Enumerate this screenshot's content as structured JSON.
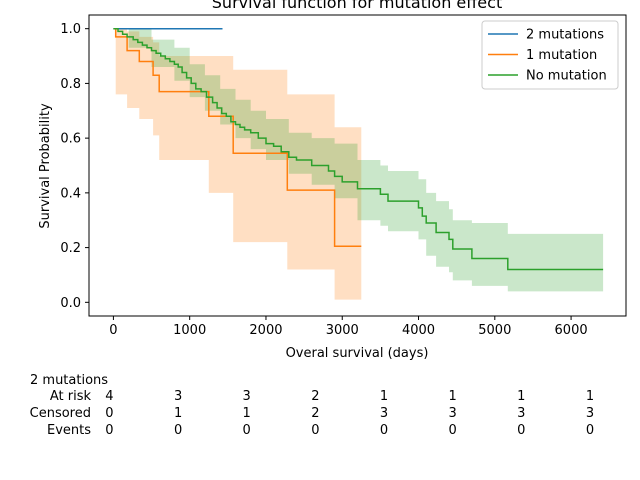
{
  "chart_data": {
    "type": "line",
    "title": "Survival function for mutation effect",
    "xlabel": "Overal survival (days)",
    "ylabel": "Survival Probability",
    "xlim": [
      -320,
      6720
    ],
    "ylim": [
      -0.05,
      1.05
    ],
    "xticks": [
      0,
      1000,
      2000,
      3000,
      4000,
      5000,
      6000
    ],
    "yticks": [
      "0.0",
      "0.2",
      "0.4",
      "0.6",
      "0.8",
      "1.0"
    ],
    "legend_position": "top-right",
    "series": [
      {
        "name": "2 mutations",
        "color": "#1f77b4",
        "steps": [
          [
            0,
            1.0
          ],
          [
            1430,
            1.0
          ]
        ],
        "ci": []
      },
      {
        "name": "1 mutation",
        "color": "#ff7f0e",
        "steps": [
          [
            0,
            1.0
          ],
          [
            30,
            0.97
          ],
          [
            180,
            0.92
          ],
          [
            340,
            0.88
          ],
          [
            520,
            0.83
          ],
          [
            600,
            0.77
          ],
          [
            1250,
            0.68
          ],
          [
            1570,
            0.545
          ],
          [
            2280,
            0.41
          ],
          [
            2900,
            0.205
          ],
          [
            3250,
            0.205
          ]
        ],
        "ci": [
          [
            0,
            1.0,
            1.0
          ],
          [
            30,
            0.76,
            1.0
          ],
          [
            180,
            0.71,
            0.99
          ],
          [
            340,
            0.67,
            0.97
          ],
          [
            520,
            0.61,
            0.95
          ],
          [
            600,
            0.52,
            0.9
          ],
          [
            1250,
            0.4,
            0.9
          ],
          [
            1570,
            0.22,
            0.85
          ],
          [
            2280,
            0.12,
            0.76
          ],
          [
            2900,
            0.01,
            0.64
          ],
          [
            3250,
            0.01,
            0.64
          ]
        ]
      },
      {
        "name": "No mutation",
        "color": "#2ca02c",
        "steps": [
          [
            0,
            1.0
          ],
          [
            60,
            0.99
          ],
          [
            120,
            0.98
          ],
          [
            180,
            0.97
          ],
          [
            260,
            0.96
          ],
          [
            320,
            0.95
          ],
          [
            380,
            0.94
          ],
          [
            440,
            0.93
          ],
          [
            500,
            0.92
          ],
          [
            560,
            0.91
          ],
          [
            620,
            0.9
          ],
          [
            680,
            0.89
          ],
          [
            740,
            0.88
          ],
          [
            800,
            0.87
          ],
          [
            850,
            0.86
          ],
          [
            900,
            0.84
          ],
          [
            960,
            0.82
          ],
          [
            1020,
            0.8
          ],
          [
            1080,
            0.78
          ],
          [
            1150,
            0.77
          ],
          [
            1220,
            0.75
          ],
          [
            1300,
            0.73
          ],
          [
            1360,
            0.71
          ],
          [
            1420,
            0.69
          ],
          [
            1480,
            0.68
          ],
          [
            1540,
            0.66
          ],
          [
            1600,
            0.65
          ],
          [
            1660,
            0.64
          ],
          [
            1720,
            0.63
          ],
          [
            1800,
            0.62
          ],
          [
            1900,
            0.6
          ],
          [
            2000,
            0.58
          ],
          [
            2100,
            0.57
          ],
          [
            2200,
            0.55
          ],
          [
            2300,
            0.53
          ],
          [
            2400,
            0.52
          ],
          [
            2600,
            0.5
          ],
          [
            2820,
            0.48
          ],
          [
            2900,
            0.46
          ],
          [
            3000,
            0.44
          ],
          [
            3200,
            0.415
          ],
          [
            3500,
            0.395
          ],
          [
            3600,
            0.37
          ],
          [
            4000,
            0.345
          ],
          [
            4050,
            0.315
          ],
          [
            4100,
            0.29
          ],
          [
            4230,
            0.255
          ],
          [
            4400,
            0.23
          ],
          [
            4450,
            0.195
          ],
          [
            4700,
            0.16
          ],
          [
            5170,
            0.12
          ],
          [
            6420,
            0.12
          ]
        ],
        "ci": [
          [
            0,
            1.0,
            1.0
          ],
          [
            200,
            0.93,
            1.0
          ],
          [
            500,
            0.86,
            0.96
          ],
          [
            800,
            0.81,
            0.93
          ],
          [
            1000,
            0.75,
            0.87
          ],
          [
            1200,
            0.7,
            0.83
          ],
          [
            1400,
            0.65,
            0.78
          ],
          [
            1600,
            0.6,
            0.74
          ],
          [
            1800,
            0.56,
            0.7
          ],
          [
            2000,
            0.52,
            0.67
          ],
          [
            2300,
            0.47,
            0.62
          ],
          [
            2600,
            0.43,
            0.6
          ],
          [
            2900,
            0.38,
            0.58
          ],
          [
            3200,
            0.3,
            0.52
          ],
          [
            3500,
            0.28,
            0.5
          ],
          [
            3600,
            0.26,
            0.48
          ],
          [
            4000,
            0.23,
            0.45
          ],
          [
            4100,
            0.17,
            0.4
          ],
          [
            4230,
            0.13,
            0.37
          ],
          [
            4400,
            0.11,
            0.34
          ],
          [
            4450,
            0.08,
            0.3
          ],
          [
            4700,
            0.06,
            0.29
          ],
          [
            5170,
            0.04,
            0.25
          ],
          [
            6420,
            0.04,
            0.25
          ]
        ]
      }
    ]
  },
  "risk_table": {
    "group": "2 mutations",
    "rows": [
      {
        "label": "At risk",
        "values": [
          "4",
          "3",
          "3",
          "2",
          "1",
          "1",
          "1",
          "1"
        ]
      },
      {
        "label": "Censored",
        "values": [
          "0",
          "1",
          "1",
          "2",
          "3",
          "3",
          "3",
          "3"
        ]
      },
      {
        "label": "Events",
        "values": [
          "0",
          "0",
          "0",
          "0",
          "0",
          "0",
          "0",
          "0"
        ]
      }
    ],
    "times": [
      0,
      900,
      1800,
      2700,
      3600,
      4500,
      5400,
      6300
    ]
  }
}
